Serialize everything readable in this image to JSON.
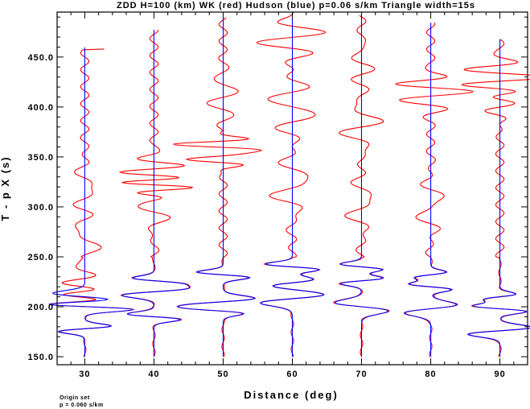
{
  "chart_data": {
    "type": "line",
    "title": "ZDD H=100 (km) WK (red) Hudson (blue) p=0.06 s/km Triangle width=15s",
    "xlabel": "Distance (deg)",
    "ylabel": "T - p X (s)",
    "xlim": [
      26,
      94
    ],
    "ylim": [
      142,
      495
    ],
    "x_ticks": [
      "30",
      "40",
      "50",
      "60",
      "70",
      "80",
      "90"
    ],
    "y_ticks": [
      "150.0",
      "200.0",
      "250.0",
      "300.0",
      "350.0",
      "400.0",
      "450.0"
    ],
    "grid": false,
    "legend": "none",
    "notes": [
      "Origin set",
      "p = 0.060 s/km"
    ],
    "trace_distances": [
      30,
      40,
      50,
      60,
      70,
      80,
      90
    ],
    "colors": {
      "wk": "#ff0000",
      "hudson": "#0000ff",
      "axes": "#000000"
    },
    "series": [
      {
        "name": "WK",
        "color": "#ff0000"
      },
      {
        "name": "Hudson",
        "color": "#0000ff"
      }
    ]
  }
}
